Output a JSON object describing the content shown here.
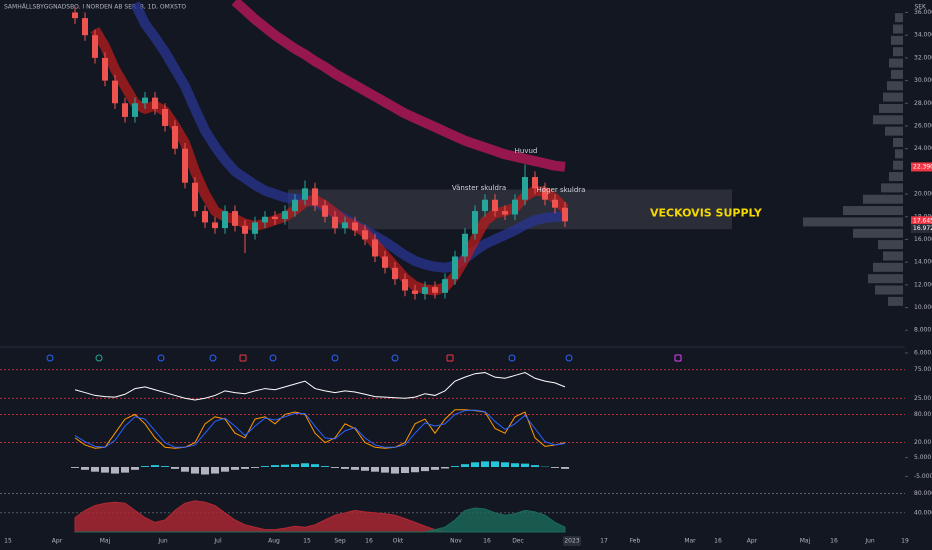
{
  "chart_data": [
    {
      "type": "candlestick",
      "title": "SAMHÄLLSBYGGNADSBO. I NORDEN AB SER. B, 1D, OMXSTO",
      "unit": "SEK",
      "open": [
        36,
        35.5,
        34,
        32,
        30,
        28,
        26.8,
        28,
        28.5,
        27.5,
        26,
        24,
        21,
        18.5,
        17.5,
        17,
        18.5,
        17.2,
        16.5,
        17.5,
        18,
        17.8,
        18.5,
        19.5,
        20.5,
        19,
        18,
        17,
        17.5,
        16.8,
        16,
        14.5,
        13.5,
        12.5,
        11.5,
        11.2,
        11.8,
        11.3,
        12.5,
        14.5,
        16.5,
        18.5,
        19.5,
        18.5,
        18.2,
        19.5,
        21.5,
        20.5,
        19.5,
        18.8
      ],
      "high": [
        36.5,
        36,
        34.5,
        32.5,
        30.5,
        28.5,
        28.5,
        29,
        29,
        28,
        26.5,
        24.5,
        21.5,
        19,
        18,
        19,
        19,
        17.7,
        18,
        18.5,
        18.5,
        19,
        20,
        21.2,
        21,
        19.5,
        18.5,
        18,
        18,
        17.3,
        16.5,
        15,
        14,
        13,
        12,
        12.3,
        12.3,
        13,
        15,
        17,
        19,
        20,
        20,
        19,
        20,
        22.6,
        22,
        21,
        20,
        19.3
      ],
      "low": [
        35,
        33.5,
        31.5,
        29.5,
        27.5,
        26.3,
        26.3,
        27.5,
        27,
        25.5,
        23.5,
        20.5,
        18,
        17,
        16.5,
        16.5,
        16.7,
        14.8,
        16,
        17,
        17.3,
        17.3,
        18,
        19,
        18.5,
        17.5,
        16.5,
        16.5,
        16.3,
        15.5,
        14,
        13,
        12,
        11,
        10.7,
        10.7,
        10.8,
        10.8,
        12,
        14,
        16,
        18,
        18,
        17.7,
        17.7,
        19,
        20,
        19,
        18.3,
        17.1
      ],
      "close": [
        35.5,
        34,
        32,
        30,
        28,
        26.8,
        28,
        28.5,
        27.5,
        26,
        24,
        21,
        18.5,
        17.5,
        17,
        18.5,
        17.2,
        16.5,
        17.5,
        18,
        17.8,
        18.5,
        19.5,
        20.5,
        19,
        18,
        17,
        17.5,
        16.8,
        16,
        14.5,
        13.5,
        12.5,
        11.5,
        11.2,
        11.8,
        11.3,
        12.5,
        14.5,
        16.5,
        18.5,
        19.5,
        18.5,
        18.2,
        19.5,
        21.5,
        20.5,
        19.5,
        18.8,
        17.6
      ],
      "up_color": "#26a69a",
      "down_color": "#ef5350",
      "ylim": [
        6.7,
        37.1
      ],
      "yticks": [
        {
          "value": 6,
          "label": "6.000"
        },
        {
          "value": 8,
          "label": "8.000"
        },
        {
          "value": 10,
          "label": "10.000"
        },
        {
          "value": 12,
          "label": "12.000"
        },
        {
          "value": 14,
          "label": "14.000"
        },
        {
          "value": 16,
          "label": "16.000"
        },
        {
          "value": 18,
          "label": "18.000"
        },
        {
          "value": 20,
          "label": "20.000"
        },
        {
          "value": 24,
          "label": "24.000"
        },
        {
          "value": 26,
          "label": "26.000"
        },
        {
          "value": 28,
          "label": "28.000"
        },
        {
          "value": 30,
          "label": "30.000"
        },
        {
          "value": 32,
          "label": "32.000"
        },
        {
          "value": 34,
          "label": "34.000"
        },
        {
          "value": 36,
          "label": "36.000"
        }
      ],
      "x_labels": [
        "15",
        "Apr",
        "Maj",
        "Jun",
        "Jul",
        "Aug",
        "15",
        "Sep",
        "16",
        "Okt",
        "Nov",
        "16",
        "Dec",
        "2023",
        "17",
        "Feb",
        "Mar",
        "16",
        "Apr",
        "Maj",
        "16",
        "Jun",
        "19"
      ],
      "bands": [
        {
          "color": "#c2185b",
          "values": [
            null,
            null,
            null,
            null,
            null,
            null,
            null,
            null,
            null,
            null,
            null,
            null,
            null,
            null,
            null,
            null,
            37,
            36.2,
            35.4,
            34.7,
            34,
            33.4,
            32.8,
            32.3,
            31.7,
            31.2,
            30.6,
            30.1,
            29.6,
            29.1,
            28.6,
            28.1,
            27.6,
            27.1,
            26.7,
            26.3,
            25.9,
            25.5,
            25.1,
            24.7,
            24.4,
            24.1,
            23.8,
            23.5,
            23.3,
            23.1,
            22.9,
            22.7,
            22.5,
            22.4
          ]
        },
        {
          "color": "#283593",
          "values": [
            null,
            null,
            null,
            null,
            null,
            null,
            36.8,
            35,
            33.8,
            32.5,
            31,
            29.5,
            27.5,
            25.6,
            24.2,
            23,
            22,
            21.4,
            20.8,
            20.3,
            20,
            19.7,
            19.6,
            19.5,
            19.3,
            18.8,
            18.3,
            17.8,
            17.3,
            16.8,
            16.3,
            15.8,
            15.2,
            14.6,
            14.1,
            13.8,
            13.6,
            13.5,
            13.7,
            14.3,
            15,
            15.6,
            16,
            16.4,
            16.8,
            17.3,
            17.7,
            17.9,
            18,
            18
          ]
        },
        {
          "color": "#b71c1c",
          "values": [
            null,
            null,
            34.5,
            33,
            31,
            29.5,
            28,
            27.5,
            27.8,
            27.3,
            26,
            24.5,
            22,
            20,
            18.5,
            18,
            17.8,
            17.4,
            17.2,
            17.4,
            17.7,
            18,
            18.6,
            19.3,
            19.5,
            19,
            18.3,
            17.6,
            17.2,
            16.6,
            15.6,
            14.6,
            13.6,
            12.6,
            11.9,
            11.6,
            11.5,
            11.8,
            12.8,
            14.3,
            16,
            17.6,
            18.3,
            18.5,
            18.8,
            19.8,
            20.3,
            20.2,
            19.6,
            18.7
          ]
        }
      ],
      "zone": {
        "range": [
          16.9,
          20.4
        ],
        "label": "VECKOVIS SUPPLY",
        "color": "#ffffff"
      },
      "annotations": [
        "Huvud",
        "Vänster skuldra",
        "Höger skuldra"
      ],
      "price_labels": [
        {
          "value": 22.39,
          "label": "22.390",
          "color": "#f23645"
        },
        {
          "value": 17.645,
          "label": "17.645",
          "color": "#f23645"
        },
        {
          "value": 16.972,
          "label": "16.972",
          "color": "#2a2e39"
        }
      ],
      "volume_profile": {
        "color": "#5d606b",
        "prices": [
          10.5,
          11.5,
          12.5,
          13.5,
          14.5,
          15.5,
          16.5,
          17.5,
          18.5,
          19.5,
          20.5,
          21.5,
          22.5,
          23.5,
          24.5,
          25.5,
          26.5,
          27.5,
          28.5,
          29.5,
          30.5,
          31.5,
          32.5,
          33.5,
          34.5,
          35.5
        ],
        "values": [
          15,
          28,
          35,
          30,
          20,
          25,
          50,
          100,
          60,
          40,
          22,
          14,
          10,
          8,
          10,
          18,
          30,
          24,
          20,
          16,
          12,
          14,
          10,
          12,
          10,
          8
        ]
      }
    },
    {
      "type": "line",
      "series": [
        {
          "color": "#ffffff",
          "values": [
            40,
            35,
            30,
            28,
            27,
            32,
            42,
            45,
            40,
            35,
            30,
            25,
            22,
            25,
            30,
            38,
            35,
            33,
            38,
            42,
            40,
            45,
            50,
            55,
            42,
            38,
            35,
            38,
            36,
            32,
            28,
            27,
            26,
            25,
            27,
            33,
            30,
            38,
            55,
            62,
            68,
            70,
            62,
            60,
            65,
            70,
            60,
            55,
            52,
            45
          ]
        }
      ],
      "ylim": [
        15,
        85
      ],
      "yticks": [
        {
          "value": 75,
          "label": "75.00"
        },
        {
          "value": 25,
          "label": "25.00"
        }
      ],
      "grid_color": "#f23645"
    },
    {
      "type": "line",
      "series": [
        {
          "color": "#ff9800",
          "values": [
            30,
            15,
            8,
            10,
            40,
            70,
            80,
            60,
            30,
            10,
            8,
            10,
            20,
            60,
            75,
            70,
            40,
            30,
            70,
            75,
            60,
            80,
            85,
            80,
            40,
            20,
            30,
            60,
            50,
            20,
            10,
            8,
            10,
            20,
            60,
            70,
            40,
            70,
            90,
            90,
            88,
            85,
            50,
            40,
            75,
            85,
            30,
            12,
            15,
            20
          ]
        },
        {
          "color": "#2962ff",
          "values": [
            35,
            22,
            12,
            10,
            25,
            55,
            75,
            70,
            45,
            20,
            10,
            10,
            15,
            40,
            65,
            72,
            55,
            35,
            55,
            72,
            68,
            75,
            82,
            82,
            55,
            30,
            28,
            45,
            52,
            30,
            15,
            10,
            10,
            15,
            40,
            62,
            55,
            60,
            80,
            88,
            89,
            86,
            65,
            48,
            60,
            78,
            50,
            22,
            15,
            18
          ]
        }
      ],
      "ylim": [
        0,
        100
      ],
      "yticks": [
        {
          "value": 80,
          "label": "80.00"
        },
        {
          "value": 20,
          "label": "20.00"
        }
      ],
      "grid_color": "#f23645"
    },
    {
      "type": "histogram",
      "values": [
        -0.5,
        -1.5,
        -2.5,
        -3,
        -3.5,
        -3,
        -1.5,
        0.5,
        1,
        0.5,
        -1,
        -2.5,
        -3.5,
        -4,
        -3.5,
        -2.5,
        -1.5,
        -1,
        -0.5,
        0.5,
        1,
        1.2,
        1.5,
        2,
        1.5,
        0.5,
        -0.5,
        -1,
        -1.5,
        -2,
        -2.5,
        -3,
        -3.5,
        -3.2,
        -2.8,
        -2.2,
        -1.5,
        -0.8,
        0.5,
        1.5,
        2.5,
        3,
        3,
        2.5,
        2,
        1.8,
        1,
        0.2,
        -0.5,
        -1
      ],
      "up_color": "#26c6da",
      "down_color": "#b2b5be",
      "ylim": [
        -8,
        8
      ],
      "yticks": [
        {
          "value": 5,
          "label": "5.000"
        },
        {
          "value": -5,
          "label": "-5.000"
        }
      ],
      "grid_color": "#363a45"
    },
    {
      "type": "area",
      "series": [
        {
          "color": "#b22833",
          "values": [
            30,
            45,
            55,
            60,
            62,
            60,
            45,
            30,
            20,
            25,
            45,
            60,
            65,
            62,
            55,
            40,
            25,
            15,
            10,
            5,
            5,
            8,
            12,
            10,
            15,
            25,
            35,
            40,
            45,
            42,
            40,
            38,
            35,
            28,
            20,
            12,
            5,
            0,
            0,
            0,
            0,
            0,
            0,
            0,
            0,
            0,
            0,
            0,
            0,
            0
          ]
        },
        {
          "color": "#1b6b5a",
          "values": [
            0,
            0,
            0,
            0,
            0,
            0,
            0,
            0,
            0,
            0,
            0,
            0,
            0,
            0,
            0,
            0,
            0,
            0,
            0,
            0,
            0,
            0,
            0,
            0,
            0,
            0,
            0,
            0,
            0,
            0,
            0,
            0,
            0,
            0,
            0,
            0,
            5,
            10,
            25,
            45,
            50,
            48,
            40,
            35,
            38,
            45,
            42,
            35,
            20,
            10
          ]
        }
      ],
      "ylim": [
        0,
        100
      ],
      "yticks": [
        {
          "value": 80,
          "label": "80.000"
        },
        {
          "value": 40,
          "label": "40.000"
        }
      ],
      "grid_color": "#787b86"
    }
  ]
}
